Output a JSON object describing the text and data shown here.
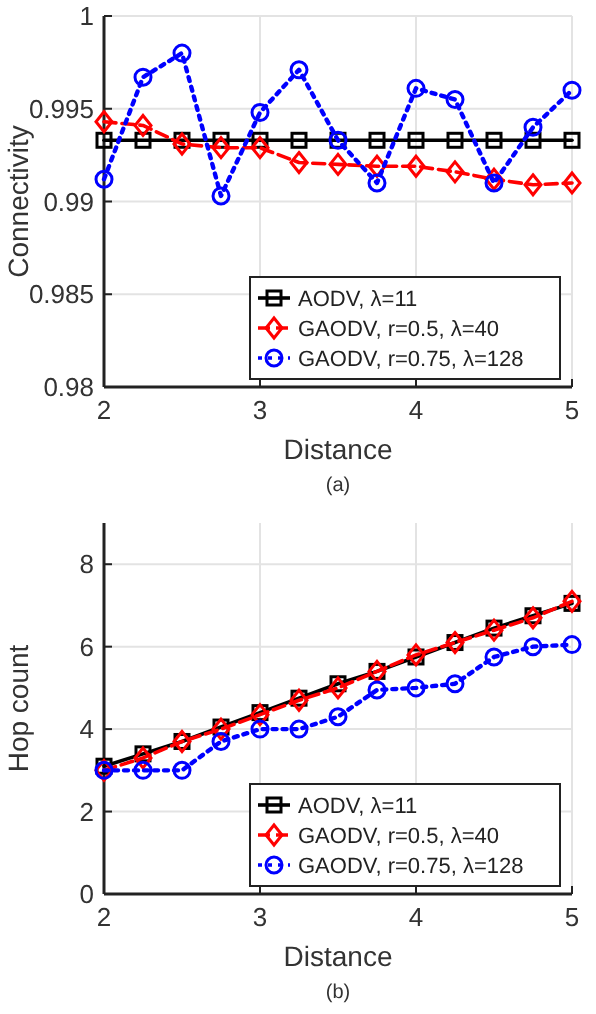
{
  "chart_data": [
    {
      "type": "line",
      "xlabel": "Distance",
      "ylabel": "Connectivity",
      "x": [
        2,
        2.25,
        2.5,
        2.75,
        3,
        3.25,
        3.5,
        3.75,
        4,
        4.25,
        4.5,
        4.75,
        5
      ],
      "xlim": [
        2,
        5
      ],
      "xticks": [
        2,
        3,
        4,
        5
      ],
      "ylim": [
        0.98,
        1
      ],
      "yticks": [
        0.98,
        0.985,
        0.99,
        0.995,
        1
      ],
      "grid": true,
      "legend": "bottom right",
      "annotations": [
        "(a)"
      ],
      "series": [
        {
          "name": "AODV, λ=11",
          "color": "#000000",
          "marker": "square",
          "line_style": "solid",
          "values": [
            0.9933,
            0.9933,
            0.9933,
            0.9933,
            0.9933,
            0.9933,
            0.9933,
            0.9933,
            0.9933,
            0.9933,
            0.9933,
            0.9933,
            0.9933
          ]
        },
        {
          "name": "GAODV, r=0.5, λ=40",
          "color": "#ff0000",
          "marker": "diamond",
          "line_style": "dashed",
          "values": [
            0.9943,
            0.9941,
            0.9931,
            0.9929,
            0.9929,
            0.9921,
            0.992,
            0.9919,
            0.9919,
            0.9916,
            0.9912,
            0.9909,
            0.991
          ]
        },
        {
          "name": "GAODV, r=0.75, λ=128",
          "color": "#0000ff",
          "marker": "circle",
          "line_style": "dotted",
          "values": [
            0.9912,
            0.9967,
            0.998,
            0.9903,
            0.9948,
            0.9971,
            0.9933,
            0.991,
            0.9961,
            0.9955,
            0.991,
            0.994,
            0.996
          ]
        }
      ]
    },
    {
      "type": "line",
      "xlabel": "Distance",
      "ylabel": "Hop count",
      "x": [
        2,
        2.25,
        2.5,
        2.75,
        3,
        3.25,
        3.5,
        3.75,
        4,
        4.25,
        4.5,
        4.75,
        5
      ],
      "xlim": [
        2,
        5
      ],
      "xticks": [
        2,
        3,
        4,
        5
      ],
      "ylim": [
        0,
        9
      ],
      "yticks": [
        0,
        2,
        4,
        6,
        8
      ],
      "grid": true,
      "legend": "bottom right",
      "annotations": [
        "(b)"
      ],
      "series": [
        {
          "name": "AODV, λ=11",
          "color": "#000000",
          "marker": "square",
          "line_style": "solid",
          "values": [
            3.1,
            3.4,
            3.7,
            4.05,
            4.4,
            4.75,
            5.1,
            5.4,
            5.75,
            6.1,
            6.45,
            6.75,
            7.05
          ]
        },
        {
          "name": "GAODV, r=0.5, λ=40",
          "color": "#ff0000",
          "marker": "diamond",
          "line_style": "dashed",
          "values": [
            3,
            3.3,
            3.7,
            4,
            4.35,
            4.7,
            5,
            5.4,
            5.8,
            6.1,
            6.4,
            6.7,
            7.1
          ]
        },
        {
          "name": "GAODV, r=0.75, λ=128",
          "color": "#0000ff",
          "marker": "circle",
          "line_style": "dotted",
          "values": [
            3,
            3,
            3,
            3.7,
            4,
            4,
            4.3,
            4.95,
            5,
            5.1,
            5.75,
            6,
            6.05
          ]
        }
      ]
    }
  ]
}
